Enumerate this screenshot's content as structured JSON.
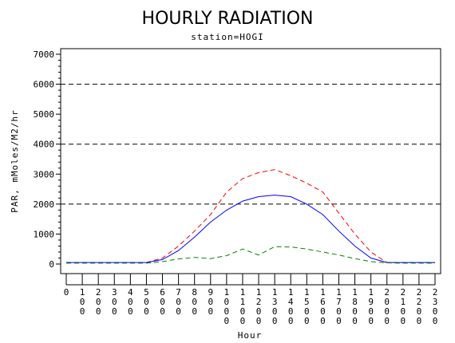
{
  "chart_data": {
    "type": "line",
    "title": "HOURLY RADIATION",
    "subtitle": "station=HOGI",
    "xlabel": "Hour",
    "ylabel": "PAR, mMoles/M2/hr",
    "x": [
      0,
      100,
      200,
      300,
      400,
      500,
      600,
      700,
      800,
      900,
      1000,
      1100,
      1200,
      1300,
      1400,
      1500,
      1600,
      1700,
      1800,
      1900,
      2000,
      2100,
      2200,
      2300
    ],
    "xlim": [
      0,
      2300
    ],
    "x_tick_labels": [
      "0",
      "100",
      "200",
      "300",
      "400",
      "500",
      "600",
      "700",
      "800",
      "900",
      "1000",
      "1100",
      "1200",
      "1300",
      "1400",
      "1500",
      "1600",
      "1700",
      "1800",
      "1900",
      "2000",
      "2100",
      "2200",
      "2300"
    ],
    "ylim": [
      0,
      7000
    ],
    "y_ticks": [
      0,
      1000,
      2000,
      3000,
      4000,
      5000,
      6000,
      7000
    ],
    "grid": {
      "y_dashed_at": [
        2000,
        4000,
        6000
      ]
    },
    "series": [
      {
        "color": "#ff0000",
        "style": "dashed",
        "values": [
          50,
          50,
          50,
          50,
          50,
          50,
          200,
          600,
          1100,
          1650,
          2400,
          2850,
          3050,
          3150,
          2950,
          2700,
          2400,
          1700,
          1000,
          400,
          50,
          50,
          50,
          50
        ]
      },
      {
        "color": "#0000ff",
        "style": "solid",
        "values": [
          50,
          50,
          50,
          50,
          50,
          50,
          150,
          450,
          900,
          1400,
          1800,
          2100,
          2250,
          2300,
          2250,
          2000,
          1650,
          1100,
          600,
          200,
          50,
          50,
          50,
          50
        ]
      },
      {
        "color": "#008000",
        "style": "dashed",
        "values": [
          30,
          30,
          30,
          30,
          30,
          30,
          80,
          170,
          220,
          180,
          280,
          500,
          300,
          580,
          570,
          500,
          400,
          300,
          180,
          80,
          40,
          30,
          30,
          30
        ]
      }
    ]
  }
}
